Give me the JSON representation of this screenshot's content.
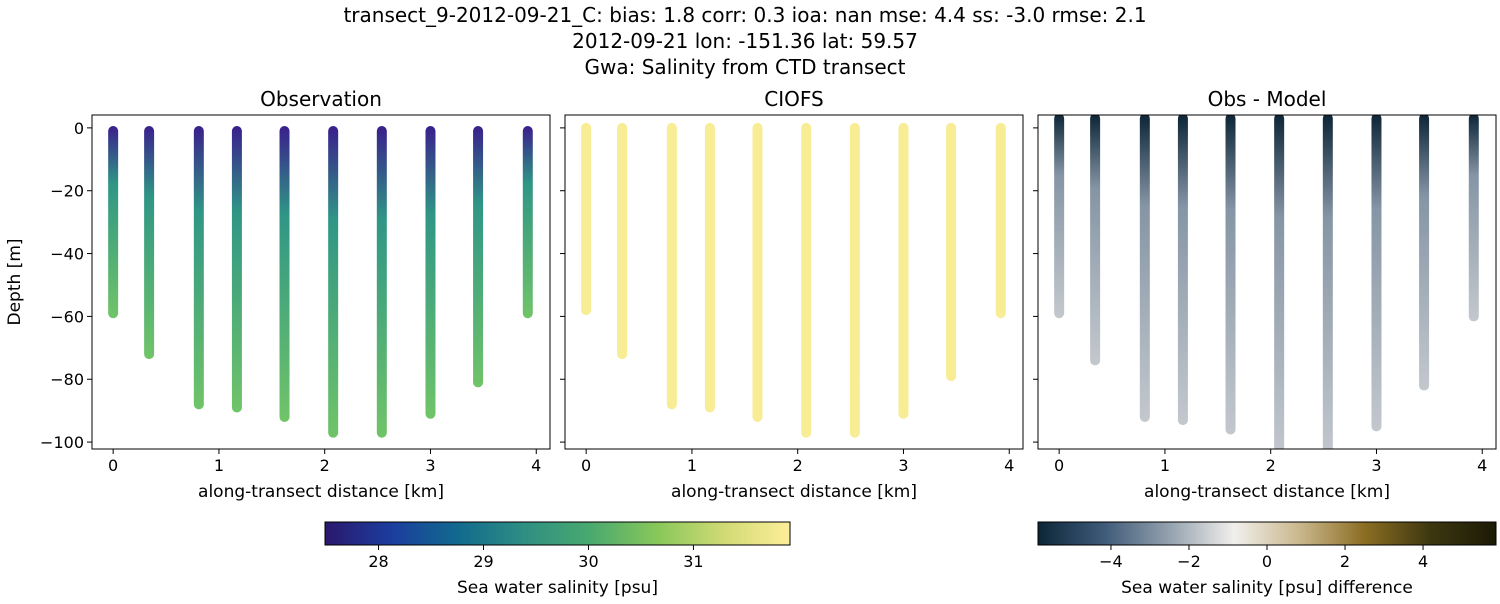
{
  "title_lines": [
    "transect_9-2012-09-21_C: bias: 1.8  corr: 0.3  ioa: nan  mse: 4.4  ss: -3.0  rmse: 2.1",
    "2012-09-21 lon: -151.36 lat: 59.57",
    "Gwa: Salinity from CTD transect"
  ],
  "chart_data": [
    {
      "type": "scatter",
      "title": "Observation",
      "xlabel": "along-transect distance [km]",
      "ylabel": "Depth [m]",
      "x": [
        0,
        0.34,
        0.81,
        1.17,
        1.62,
        2.08,
        2.54,
        3.0,
        3.45,
        3.92
      ],
      "depth_top": [
        -1,
        -1,
        -1,
        -1,
        -1,
        -1,
        -1,
        -1,
        -1,
        -1
      ],
      "depth_bottom": [
        -59,
        -72,
        -88,
        -89,
        -92,
        -97,
        -97,
        -91,
        -81,
        -59
      ],
      "color_top": "#3a1f8c",
      "color_mid": "#2f9686",
      "color_bottom": "#70c468",
      "xlim": [
        -0.2,
        4.13
      ],
      "ylim": [
        -102.2,
        4.1
      ],
      "xticks": [
        0,
        1,
        2,
        3,
        4
      ],
      "yticks": [
        0,
        {
          "value": -20,
          "label": "−20"
        },
        {
          "value": -40,
          "label": "−40"
        },
        {
          "value": -60,
          "label": "−60"
        },
        {
          "value": -80,
          "label": "−80"
        },
        {
          "value": -100,
          "label": "−100"
        }
      ],
      "ytick_labels": true
    },
    {
      "type": "scatter",
      "title": "CIOFS",
      "xlabel": "along-transect distance [km]",
      "x": [
        0,
        0.34,
        0.81,
        1.17,
        1.62,
        2.08,
        2.54,
        3.0,
        3.45,
        3.92
      ],
      "depth_top": [
        0,
        0,
        0,
        0,
        0,
        0,
        0,
        0,
        0,
        0
      ],
      "depth_bottom": [
        -58,
        -72,
        -88,
        -89,
        -92,
        -97,
        -97,
        -91,
        -79,
        -59
      ],
      "color_top": "#f8ec94",
      "color_mid": "#f8ec94",
      "color_bottom": "#f8ec94",
      "xlim": [
        -0.2,
        4.13
      ],
      "ylim": [
        -102.2,
        4.1
      ],
      "xticks": [
        0,
        1,
        2,
        3,
        4
      ],
      "yticks": [
        0,
        -20,
        -40,
        -60,
        -80,
        -100
      ],
      "ytick_labels": false
    },
    {
      "type": "scatter",
      "title": "Obs - Model",
      "xlabel": "along-transect distance [km]",
      "x": [
        0,
        0.34,
        0.81,
        1.17,
        1.62,
        2.08,
        2.54,
        3.0,
        3.45,
        3.92
      ],
      "depth_top": [
        3,
        3,
        3,
        3,
        3,
        3,
        3,
        3,
        3,
        3
      ],
      "depth_bottom": [
        -59,
        -74,
        -92,
        -93,
        -96,
        -104,
        -104,
        -95,
        -82,
        -60
      ],
      "color_top": "#0b2436",
      "color_mid": "#8595a5",
      "color_bottom": "#c3c8cd",
      "xlim": [
        -0.2,
        4.13
      ],
      "ylim": [
        -102.2,
        4.1
      ],
      "xticks": [
        0,
        1,
        2,
        3,
        4
      ],
      "yticks": [
        0,
        -20,
        -40,
        -60,
        -80,
        -100
      ],
      "ytick_labels": false
    }
  ],
  "colorbars": [
    {
      "label": "Sea water salinity [psu]",
      "lim": [
        27.49,
        31.92
      ],
      "ticks": [
        28,
        29,
        30,
        31
      ],
      "colormap": [
        "#2a186c",
        "#1c3d9e",
        "#116a8e",
        "#2e8f83",
        "#4aa96f",
        "#88c75a",
        "#d0da74",
        "#fdee99"
      ]
    },
    {
      "label": "Sea water salinity [psu] difference",
      "lim": [
        -5.87,
        5.87
      ],
      "ticks": [
        {
          "value": -4,
          "label": "−4"
        },
        {
          "value": -2,
          "label": "−2"
        },
        0,
        2,
        4
      ],
      "colormap": [
        "#0c2638",
        "#3e5a78",
        "#93a1ae",
        "#f1efec",
        "#c9b78c",
        "#8b6d22",
        "#3d3710",
        "#1b1a06"
      ]
    }
  ]
}
